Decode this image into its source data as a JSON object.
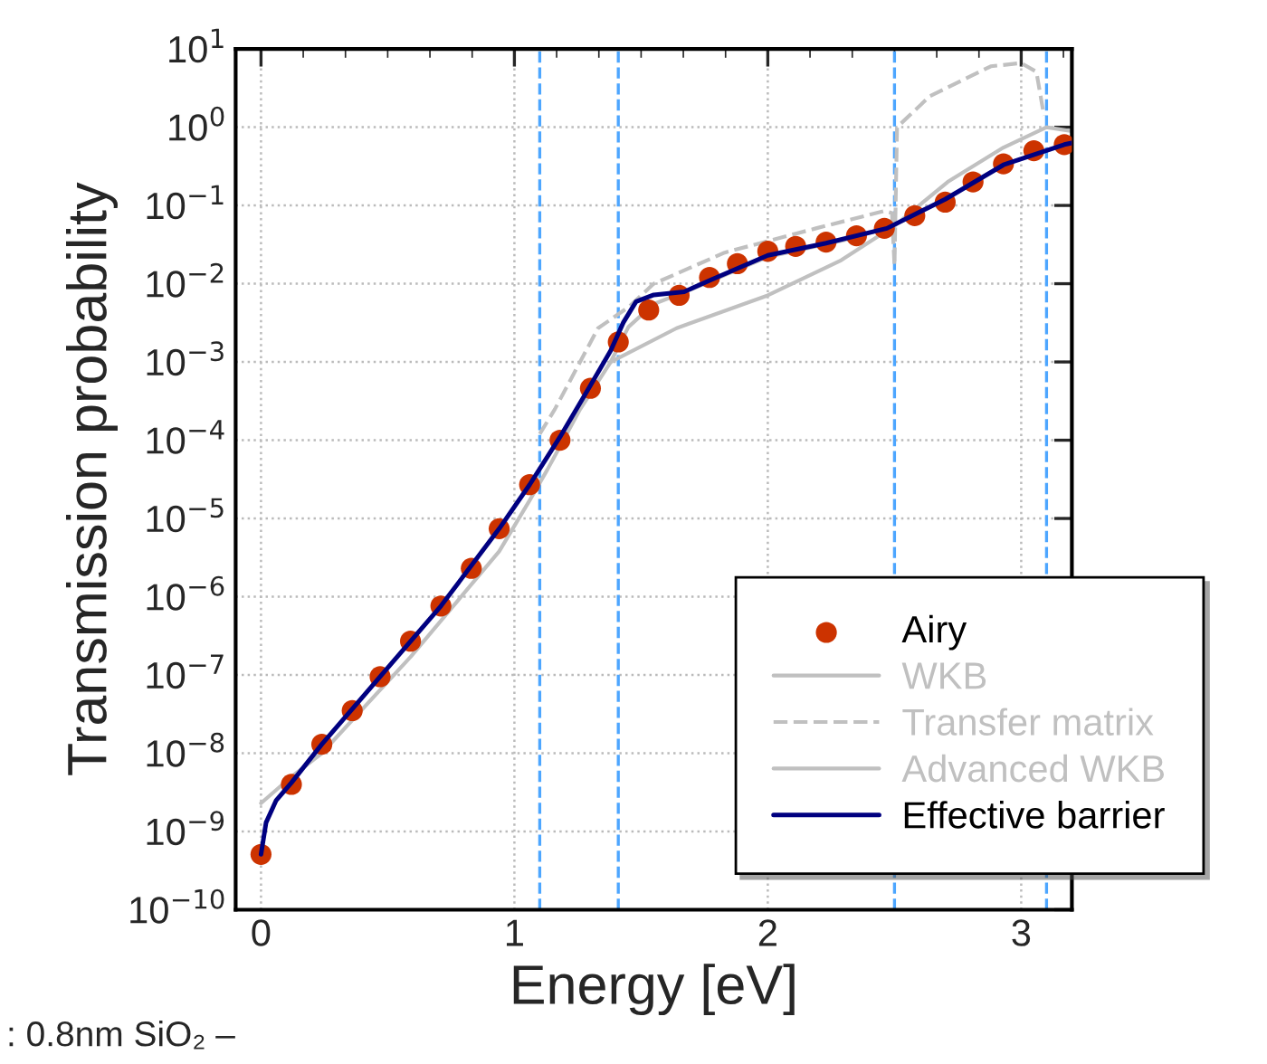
{
  "chart_data": {
    "type": "line",
    "xlabel": "Energy [eV]",
    "ylabel": "Transmission probability",
    "xlim": [
      -0.1,
      3.2
    ],
    "xticks": [
      0,
      1,
      2,
      3
    ],
    "ylim": [
      1e-10,
      10
    ],
    "log": "y",
    "yticks": [
      {
        "value": 1e-10,
        "label": "10$^{−10}$"
      },
      {
        "value": 1e-09,
        "label": "10$^{−9}$"
      },
      {
        "value": 1e-08,
        "label": "10$^{−8}$"
      },
      {
        "value": 1e-07,
        "label": "10$^{−7}$"
      },
      {
        "value": 1e-06,
        "label": "10$^{−6}$"
      },
      {
        "value": 1e-05,
        "label": "10$^{−5}$"
      },
      {
        "value": 0.0001,
        "label": "10$^{−4}$"
      },
      {
        "value": 0.001,
        "label": "10$^{−3}$"
      },
      {
        "value": 0.01,
        "label": "10$^{−2}$"
      },
      {
        "value": 0.1,
        "label": "10$^{−1}$"
      },
      {
        "value": 1,
        "label": "10$^{0}$"
      },
      {
        "value": 10,
        "label": "10$^{1}$"
      }
    ],
    "grid": true,
    "legend": "bottom right",
    "series": [
      {
        "name": "Airy",
        "type": "scatter",
        "marker": "circle",
        "color": "#cc3300",
        "x": [
          0,
          0.12,
          0.24,
          0.36,
          0.47,
          0.59,
          0.71,
          0.83,
          0.94,
          1.06,
          1.18,
          1.3,
          1.41,
          1.53,
          1.65,
          1.77,
          1.88,
          2.0,
          2.11,
          2.23,
          2.35,
          2.46,
          2.58,
          2.7,
          2.81,
          2.93,
          3.05,
          3.17
        ],
        "values": [
          5.1e-10,
          4e-09,
          1.3e-08,
          3.5e-08,
          9.5e-08,
          2.7e-07,
          7.6e-07,
          2.3e-06,
          7.4e-06,
          2.7e-05,
          0.0001,
          0.00046,
          0.0018,
          0.0046,
          0.0071,
          0.012,
          0.018,
          0.026,
          0.03,
          0.034,
          0.041,
          0.051,
          0.074,
          0.11,
          0.2,
          0.34,
          0.5,
          0.6
        ]
      },
      {
        "name": "WKB",
        "line_style": "solid",
        "color": "#c0c0c0",
        "x": [
          0,
          0.12,
          0.24,
          0.59,
          0.94,
          1.06,
          1.13,
          1.26,
          1.38,
          1.64,
          2.0,
          2.29,
          2.5,
          2.71,
          2.93,
          3.1,
          3.2
        ],
        "values": [
          2.3e-09,
          5e-09,
          1e-08,
          1.7e-07,
          3.8e-06,
          1.7e-05,
          4.2e-05,
          0.00025,
          0.001,
          0.0027,
          0.0071,
          0.02,
          0.055,
          0.2,
          0.55,
          1.0,
          0.89
        ]
      },
      {
        "name": "Transfer matrix",
        "line_style": "dashed",
        "color": "#c0c0c0",
        "x": [
          1.1,
          1.16,
          1.33,
          1.45,
          1.55,
          1.83,
          2.19,
          2.46,
          2.49,
          2.5,
          2.51,
          2.64,
          2.88,
          3.0,
          3.06,
          3.09
        ],
        "values": [
          0.00012,
          0.00025,
          0.0027,
          0.005,
          0.01,
          0.025,
          0.051,
          0.085,
          0.08,
          0.017,
          1.0,
          2.5,
          6.0,
          6.6,
          5.1,
          1.4
        ]
      },
      {
        "name": "Advanced WKB",
        "line_style": "solid",
        "color": "#c0c0c0",
        "x": [
          1.38,
          1.45,
          1.55,
          1.7,
          2.0,
          2.3,
          2.5
        ],
        "values": [
          0.001,
          0.0028,
          0.0055,
          0.0085,
          0.022,
          0.036,
          0.055
        ]
      },
      {
        "name": "Effective barrier",
        "line_style": "solid",
        "color": "#000080",
        "x": [
          0,
          0.02,
          0.06,
          0.12,
          0.24,
          0.47,
          0.71,
          0.94,
          1.06,
          1.18,
          1.3,
          1.38,
          1.43,
          1.48,
          1.55,
          1.67,
          1.77,
          2.0,
          2.23,
          2.47,
          2.7,
          2.93,
          3.17,
          3.2
        ],
        "values": [
          5.1e-10,
          1.3e-09,
          2.5e-09,
          4.2e-09,
          1.3e-08,
          9.5e-08,
          7.6e-07,
          7.4e-06,
          2.7e-05,
          0.00011,
          0.0005,
          0.0014,
          0.0032,
          0.0059,
          0.0072,
          0.0079,
          0.011,
          0.023,
          0.033,
          0.051,
          0.12,
          0.33,
          0.6,
          0.63
        ]
      }
    ],
    "ref_lines": [
      {
        "axis": "x",
        "value": 1.1,
        "color": "#4da6ff",
        "line_style": "dashed"
      },
      {
        "axis": "x",
        "value": 1.41,
        "color": "#4da6ff",
        "line_style": "dashed"
      },
      {
        "axis": "x",
        "value": 2.5,
        "color": "#4da6ff",
        "line_style": "dashed"
      },
      {
        "axis": "x",
        "value": 3.1,
        "color": "#4da6ff",
        "line_style": "dashed"
      }
    ],
    "annotations": [
      ": 0.8nm SiO₂ –"
    ]
  }
}
